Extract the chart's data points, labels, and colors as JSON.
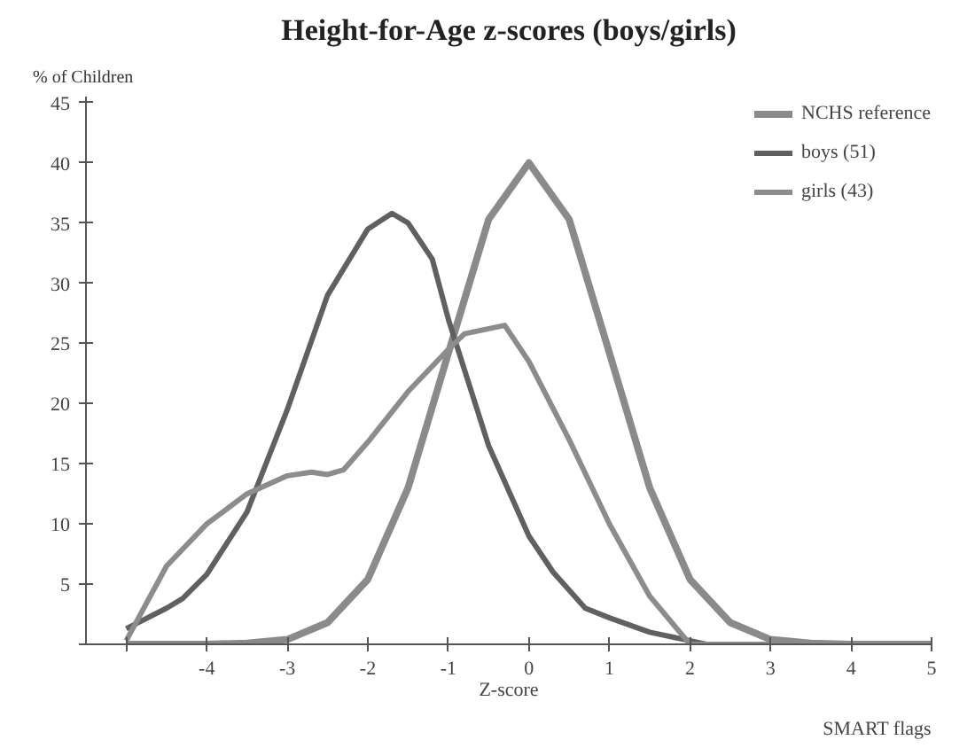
{
  "chart_data": {
    "type": "line",
    "title": "Height-for-Age z-scores (boys/girls)",
    "ylabel": "% of Children",
    "xlabel": "Z-score",
    "annotations": [
      "SMART flags"
    ],
    "xlim": [
      -5.5,
      5
    ],
    "xticks": [
      {
        "value": -5,
        "label": null
      },
      -4,
      -3,
      -2,
      -1,
      0,
      1,
      2,
      3,
      4,
      5
    ],
    "ylim": [
      0,
      45.5
    ],
    "yticks": [
      {
        "value": 0,
        "label": null
      },
      5,
      10,
      15,
      20,
      25,
      30,
      35,
      40,
      45
    ],
    "grid": false,
    "legend": "top right",
    "marker": "none",
    "line_style": "solid",
    "series": [
      {
        "name": "NCHS reference",
        "color": "#8a8a8a",
        "x": [
          -5,
          -4,
          -3.5,
          -3,
          -2.5,
          -2,
          -1.5,
          -1,
          -0.5,
          0,
          0.5,
          1,
          1.5,
          2,
          2.5,
          3,
          3.5,
          4,
          5
        ],
        "values": [
          0,
          0,
          0.1,
          0.4,
          1.8,
          5.4,
          13,
          24.2,
          35.3,
          40,
          35.3,
          24.2,
          13,
          5.4,
          1.8,
          0.4,
          0.1,
          0,
          0
        ]
      },
      {
        "name": "boys (51)",
        "color": "#606060",
        "x": [
          -5,
          -4.5,
          -4.3,
          -4,
          -3.5,
          -3,
          -2.5,
          -2,
          -1.7,
          -1.5,
          -1.2,
          -1,
          -0.5,
          0,
          0.3,
          0.7,
          1,
          1.5,
          2,
          2.2,
          3,
          5
        ],
        "values": [
          1.3,
          3,
          3.8,
          5.8,
          11,
          19.5,
          29,
          34.5,
          35.8,
          35,
          32,
          27,
          16.5,
          9,
          6,
          3,
          2.2,
          1,
          0.3,
          0,
          0,
          0
        ]
      },
      {
        "name": "girls (43)",
        "color": "#8c8c8c",
        "x": [
          -5,
          -4.5,
          -4,
          -3.5,
          -3,
          -2.7,
          -2.5,
          -2.3,
          -2,
          -1.5,
          -1,
          -0.8,
          -0.3,
          0,
          0.5,
          1,
          1.5,
          2,
          3,
          5
        ],
        "values": [
          0.3,
          6.5,
          10,
          12.5,
          14,
          14.3,
          14.1,
          14.5,
          16.8,
          21,
          24.5,
          25.8,
          26.5,
          23.5,
          17,
          10,
          4,
          0,
          0,
          0
        ]
      }
    ]
  }
}
